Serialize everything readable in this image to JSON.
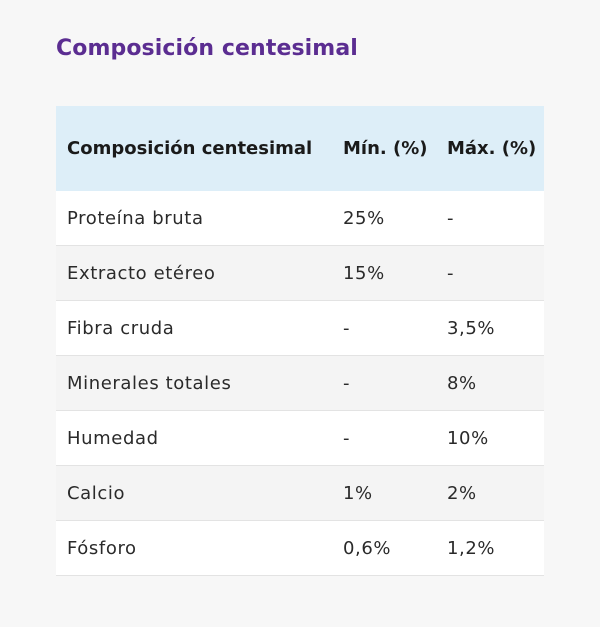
{
  "title": "Composición centesimal",
  "table": {
    "headers": [
      "Composición centesimal",
      "Mín. (%)",
      "Máx. (%)"
    ],
    "rows": [
      [
        "Proteína bruta",
        "25%",
        "-"
      ],
      [
        "Extracto etéreo",
        "15%",
        "-"
      ],
      [
        "Fibra cruda",
        "-",
        "3,5%"
      ],
      [
        "Minerales totales",
        "-",
        "8%"
      ],
      [
        "Humedad",
        "-",
        "10%"
      ],
      [
        "Calcio",
        "1%",
        "2%"
      ],
      [
        "Fósforo",
        "0,6%",
        "1,2%"
      ]
    ]
  },
  "colors": {
    "title": "#5b2d91",
    "header_bg": "#ddeef8",
    "page_bg": "#f7f7f7"
  }
}
